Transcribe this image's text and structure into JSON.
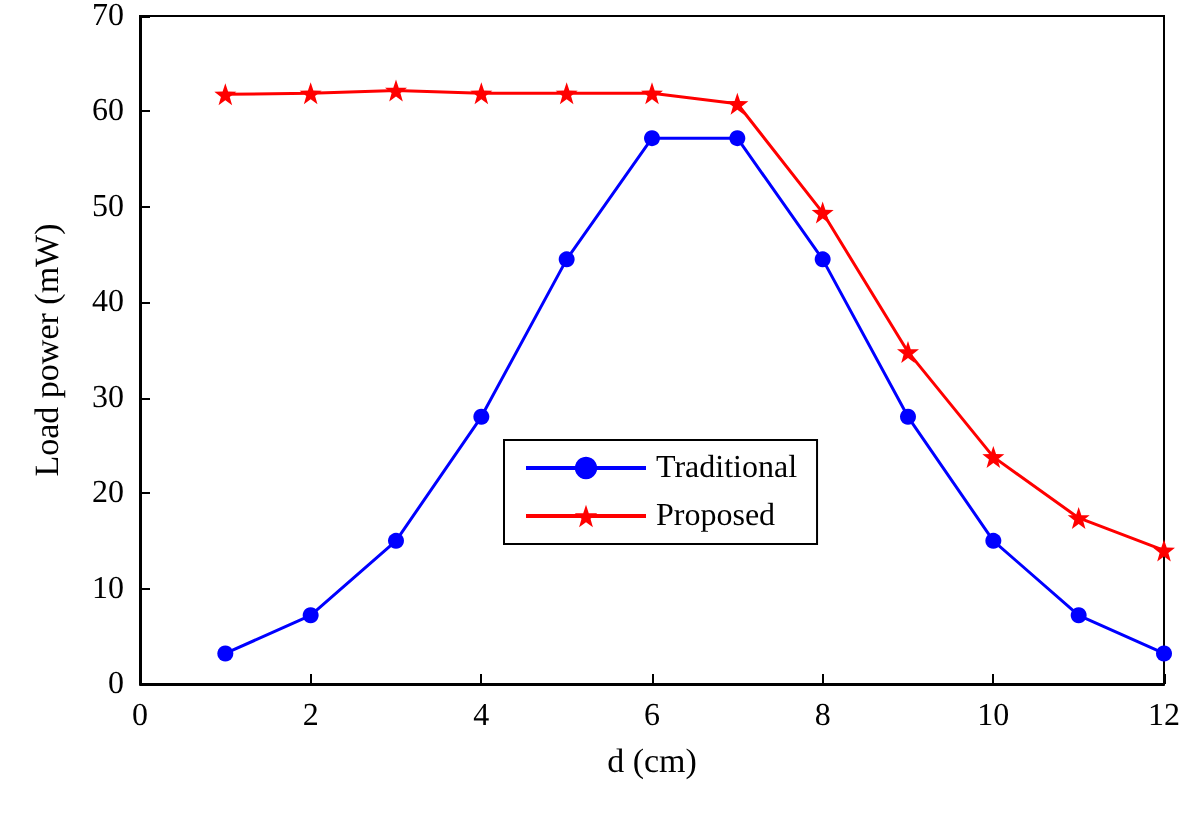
{
  "chart_data": {
    "type": "line",
    "xlabel": "d (cm)",
    "ylabel": "Load power (mW)",
    "x": [
      1,
      2,
      3,
      4,
      5,
      6,
      7,
      8,
      9,
      10,
      11,
      12
    ],
    "series": [
      {
        "name": "Traditional",
        "color": "#0000ff",
        "marker": "circle",
        "values": [
          3.2,
          7.2,
          15,
          28,
          44.5,
          57.2,
          57.2,
          44.5,
          28,
          15,
          7.2,
          3.2
        ]
      },
      {
        "name": "Proposed",
        "color": "#ff0000",
        "marker": "star",
        "values": [
          61.8,
          61.9,
          62.2,
          61.9,
          61.9,
          61.9,
          60.8,
          49.4,
          34.8,
          23.8,
          17.4,
          14
        ]
      }
    ],
    "xlim": [
      0,
      12
    ],
    "xticks": [
      0,
      2,
      4,
      6,
      8,
      10,
      12
    ],
    "ylim": [
      0,
      70
    ],
    "yticks": [
      0,
      10,
      20,
      30,
      40,
      50,
      60,
      70
    ],
    "grid": false,
    "legend": "center",
    "line_style": "solid"
  }
}
